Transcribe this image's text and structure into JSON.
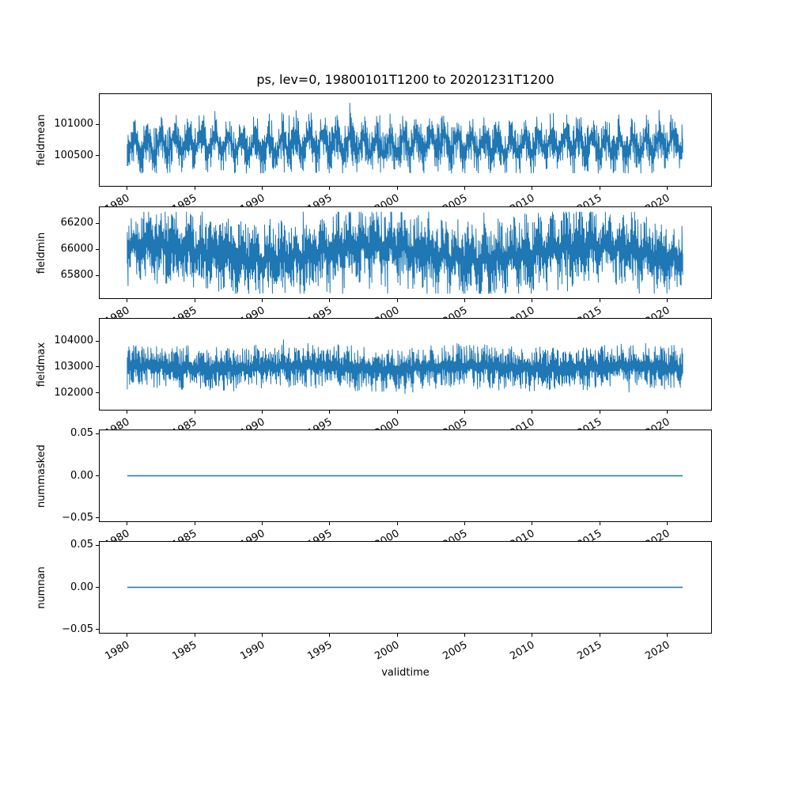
{
  "figure": {
    "title": "ps, lev=0, 19800101T1200 to 20201231T1200",
    "xlabel": "validtime",
    "line_color": "#1f77b4",
    "axis_color": "#000000",
    "background_color": "#ffffff",
    "xtick_labels": [
      "1980",
      "1985",
      "1990",
      "1995",
      "2000",
      "2005",
      "2010",
      "2015",
      "2020"
    ],
    "xtick_years": [
      1980,
      1985,
      1990,
      1995,
      2000,
      2005,
      2010,
      2015,
      2020
    ],
    "xtick_rotation_deg": 30,
    "xlim": [
      1977.9,
      2023.3
    ],
    "grid": false,
    "legend": "none"
  },
  "chart_data": [
    {
      "name": "fieldmean",
      "type": "line",
      "ylabel": "fieldmean",
      "xlabel": "validtime",
      "x_start": 1980.0,
      "x_end": 2021.2,
      "ylim": [
        100010,
        101490
      ],
      "yticks": [
        {
          "label": "100500",
          "value": 100500
        },
        {
          "label": "101000",
          "value": 101000
        }
      ],
      "series": {
        "kind": "noisy_band",
        "seed": 11,
        "baseline": 100680,
        "seasonal_amplitude": 140,
        "slow_amplitude": 35,
        "slow_period_years": 9,
        "slow_phase_year": 1983,
        "min_half_width": 60,
        "noise_amplitude": 330,
        "spike_probability": 0.025,
        "spike_amplitude": 260,
        "extreme_min": 100215,
        "extreme_max": 101405
      }
    },
    {
      "name": "fieldmin",
      "type": "line",
      "ylabel": "fieldmin",
      "xlabel": "validtime",
      "x_start": 1980.0,
      "x_end": 2021.2,
      "ylim": [
        65620,
        66330
      ],
      "yticks": [
        {
          "label": "65800",
          "value": 65800
        },
        {
          "label": "66000",
          "value": 66000
        },
        {
          "label": "66200",
          "value": 66200
        }
      ],
      "series": {
        "kind": "noisy_band",
        "seed": 22,
        "baseline": 65975,
        "seasonal_amplitude": 45,
        "slow_amplitude": 55,
        "slow_period_years": 16,
        "slow_phase_year": 1994,
        "min_half_width": 55,
        "noise_amplitude": 240,
        "spike_probability": 0.02,
        "spike_amplitude": 200,
        "extreme_min": 65655,
        "extreme_max": 66295
      }
    },
    {
      "name": "fieldmax",
      "type": "line",
      "ylabel": "fieldmax",
      "xlabel": "validtime",
      "x_start": 1980.0,
      "x_end": 2021.2,
      "ylim": [
        101330,
        104880
      ],
      "yticks": [
        {
          "label": "102000",
          "value": 102000
        },
        {
          "label": "103000",
          "value": 103000
        },
        {
          "label": "104000",
          "value": 104000
        }
      ],
      "series": {
        "kind": "noisy_band",
        "seed": 33,
        "baseline": 102980,
        "seasonal_amplitude": 70,
        "slow_amplitude": 60,
        "slow_period_years": 12,
        "slow_phase_year": 1990,
        "min_half_width": 150,
        "noise_amplitude": 700,
        "spike_probability": 0.018,
        "spike_amplitude": 380,
        "extreme_min": 101680,
        "extreme_max": 104620
      }
    },
    {
      "name": "nummasked",
      "type": "line",
      "ylabel": "nummasked",
      "xlabel": "validtime",
      "x_start": 1980.0,
      "x_end": 2021.2,
      "ylim": [
        -0.055,
        0.055
      ],
      "yticks": [
        {
          "label": "−0.05",
          "value": -0.05
        },
        {
          "label": "0.00",
          "value": 0
        },
        {
          "label": "0.05",
          "value": 0.05
        }
      ],
      "series": {
        "kind": "constant",
        "value": 0.0
      }
    },
    {
      "name": "numnan",
      "type": "line",
      "ylabel": "numnan",
      "xlabel": "validtime",
      "x_start": 1980.0,
      "x_end": 2021.2,
      "ylim": [
        -0.055,
        0.055
      ],
      "yticks": [
        {
          "label": "−0.05",
          "value": -0.05
        },
        {
          "label": "0.00",
          "value": 0
        },
        {
          "label": "0.05",
          "value": 0.05
        }
      ],
      "series": {
        "kind": "constant",
        "value": 0.0
      }
    }
  ]
}
